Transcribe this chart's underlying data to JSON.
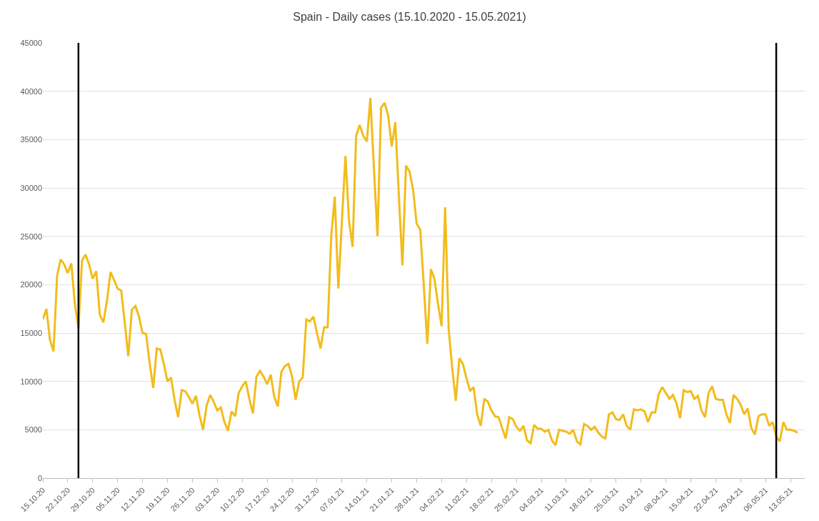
{
  "chart_data": {
    "type": "line",
    "title": "Spain - Daily cases (15.10.2020 - 15.05.2021)",
    "x": [
      "2020-10-15",
      "2020-10-16",
      "2020-10-17",
      "2020-10-18",
      "2020-10-19",
      "2020-10-20",
      "2020-10-21",
      "2020-10-22",
      "2020-10-23",
      "2020-10-24",
      "2020-10-25",
      "2020-10-26",
      "2020-10-27",
      "2020-10-28",
      "2020-10-29",
      "2020-10-30",
      "2020-10-31",
      "2020-11-01",
      "2020-11-02",
      "2020-11-03",
      "2020-11-04",
      "2020-11-05",
      "2020-11-06",
      "2020-11-07",
      "2020-11-08",
      "2020-11-09",
      "2020-11-10",
      "2020-11-11",
      "2020-11-12",
      "2020-11-13",
      "2020-11-14",
      "2020-11-15",
      "2020-11-16",
      "2020-11-17",
      "2020-11-18",
      "2020-11-19",
      "2020-11-20",
      "2020-11-21",
      "2020-11-22",
      "2020-11-23",
      "2020-11-24",
      "2020-11-25",
      "2020-11-26",
      "2020-11-27",
      "2020-11-28",
      "2020-11-29",
      "2020-11-30",
      "2020-12-01",
      "2020-12-02",
      "2020-12-03",
      "2020-12-04",
      "2020-12-05",
      "2020-12-06",
      "2020-12-07",
      "2020-12-08",
      "2020-12-09",
      "2020-12-10",
      "2020-12-11",
      "2020-12-12",
      "2020-12-13",
      "2020-12-14",
      "2020-12-15",
      "2020-12-16",
      "2020-12-17",
      "2020-12-18",
      "2020-12-19",
      "2020-12-20",
      "2020-12-21",
      "2020-12-22",
      "2020-12-23",
      "2020-12-24",
      "2020-12-25",
      "2020-12-26",
      "2020-12-27",
      "2020-12-28",
      "2020-12-29",
      "2020-12-30",
      "2020-12-31",
      "2021-01-01",
      "2021-01-02",
      "2021-01-03",
      "2021-01-04",
      "2021-01-05",
      "2021-01-06",
      "2021-01-07",
      "2021-01-08",
      "2021-01-09",
      "2021-01-10",
      "2021-01-11",
      "2021-01-12",
      "2021-01-13",
      "2021-01-14",
      "2021-01-15",
      "2021-01-16",
      "2021-01-17",
      "2021-01-18",
      "2021-01-19",
      "2021-01-20",
      "2021-01-21",
      "2021-01-22",
      "2021-01-23",
      "2021-01-24",
      "2021-01-25",
      "2021-01-26",
      "2021-01-27",
      "2021-01-28",
      "2021-01-29",
      "2021-01-30",
      "2021-01-31",
      "2021-02-01",
      "2021-02-02",
      "2021-02-03",
      "2021-02-04",
      "2021-02-05",
      "2021-02-06",
      "2021-02-07",
      "2021-02-08",
      "2021-02-09",
      "2021-02-10",
      "2021-02-11",
      "2021-02-12",
      "2021-02-13",
      "2021-02-14",
      "2021-02-15",
      "2021-02-16",
      "2021-02-17",
      "2021-02-18",
      "2021-02-19",
      "2021-02-20",
      "2021-02-21",
      "2021-02-22",
      "2021-02-23",
      "2021-02-24",
      "2021-02-25",
      "2021-02-26",
      "2021-02-27",
      "2021-02-28",
      "2021-03-01",
      "2021-03-02",
      "2021-03-03",
      "2021-03-04",
      "2021-03-05",
      "2021-03-06",
      "2021-03-07",
      "2021-03-08",
      "2021-03-09",
      "2021-03-10",
      "2021-03-11",
      "2021-03-12",
      "2021-03-13",
      "2021-03-14",
      "2021-03-15",
      "2021-03-16",
      "2021-03-17",
      "2021-03-18",
      "2021-03-19",
      "2021-03-20",
      "2021-03-21",
      "2021-03-22",
      "2021-03-23",
      "2021-03-24",
      "2021-03-25",
      "2021-03-26",
      "2021-03-27",
      "2021-03-28",
      "2021-03-29",
      "2021-03-30",
      "2021-03-31",
      "2021-04-01",
      "2021-04-02",
      "2021-04-03",
      "2021-04-04",
      "2021-04-05",
      "2021-04-06",
      "2021-04-07",
      "2021-04-08",
      "2021-04-09",
      "2021-04-10",
      "2021-04-11",
      "2021-04-12",
      "2021-04-13",
      "2021-04-14",
      "2021-04-15",
      "2021-04-16",
      "2021-04-17",
      "2021-04-18",
      "2021-04-19",
      "2021-04-20",
      "2021-04-21",
      "2021-04-22",
      "2021-04-23",
      "2021-04-24",
      "2021-04-25",
      "2021-04-26",
      "2021-04-27",
      "2021-04-28",
      "2021-04-29",
      "2021-04-30",
      "2021-05-01",
      "2021-05-02",
      "2021-05-03",
      "2021-05-04",
      "2021-05-05",
      "2021-05-06",
      "2021-05-07",
      "2021-05-08",
      "2021-05-09",
      "2021-05-10",
      "2021-05-11",
      "2021-05-12",
      "2021-05-13",
      "2021-05-14",
      "2021-05-15"
    ],
    "series": [
      {
        "color": "#f2bc1b",
        "values": [
          16400,
          17500,
          14300,
          13100,
          20900,
          22600,
          22100,
          21200,
          22200,
          18000,
          15500,
          22500,
          23100,
          22100,
          20600,
          21400,
          16900,
          16100,
          18300,
          21300,
          20500,
          19600,
          19400,
          16100,
          12600,
          17400,
          17800,
          16700,
          15000,
          14900,
          11900,
          9300,
          13400,
          13300,
          11800,
          10000,
          10400,
          8100,
          6300,
          9100,
          9000,
          8400,
          7700,
          8500,
          6500,
          5000,
          7500,
          8600,
          7900,
          7000,
          7300,
          5800,
          4900,
          6900,
          6400,
          8800,
          9500,
          10000,
          8200,
          6700,
          10500,
          11100,
          10500,
          9700,
          10700,
          8400,
          7400,
          11000,
          11600,
          11800,
          10500,
          8100,
          10000,
          10400,
          16400,
          16200,
          16700,
          15000,
          13400,
          15600,
          15600,
          25000,
          29100,
          19600,
          26600,
          33300,
          26600,
          23900,
          35400,
          36500,
          35400,
          34800,
          39300,
          32000,
          25000,
          38300,
          38800,
          37500,
          34300,
          36800,
          29200,
          22000,
          32300,
          31700,
          29800,
          26300,
          25700,
          19900,
          13900,
          21600,
          20600,
          18000,
          15700,
          28000,
          15400,
          11300,
          8000,
          12400,
          11800,
          10300,
          9000,
          9400,
          6600,
          5400,
          8200,
          7900,
          7000,
          6400,
          6300,
          5200,
          4100,
          6300,
          6100,
          5300,
          4900,
          5400,
          3900,
          3600,
          5500,
          5100,
          5100,
          4800,
          5000,
          3900,
          3400,
          5000,
          4900,
          4800,
          4600,
          5000,
          3800,
          3500,
          5600,
          5400,
          5000,
          5300,
          4700,
          4300,
          4100,
          6600,
          6800,
          6100,
          6000,
          6600,
          5400,
          5000,
          7100,
          7000,
          7100,
          6900,
          5800,
          6800,
          6800,
          8700,
          9400,
          8800,
          8200,
          8600,
          7700,
          6200,
          9100,
          8900,
          9000,
          8200,
          8500,
          7000,
          6300,
          8800,
          9500,
          8200,
          8100,
          8100,
          6600,
          5700,
          8600,
          8200,
          7600,
          6600,
          7200,
          5200,
          4500,
          6400,
          6600,
          6600,
          5400,
          5800,
          4300,
          3800,
          5800,
          5000,
          5000,
          4900,
          4700
        ]
      }
    ],
    "xlim": [
      "2020-10-15",
      "2021-05-17"
    ],
    "xticks": [
      {
        "value": "2020-10-15",
        "label": "15.10.20"
      },
      {
        "value": "2020-10-22",
        "label": "22.10.20"
      },
      {
        "value": "2020-10-29",
        "label": "29.10.20"
      },
      {
        "value": "2020-11-05",
        "label": "05.11.20"
      },
      {
        "value": "2020-11-12",
        "label": "12.11.20"
      },
      {
        "value": "2020-11-19",
        "label": "19.11.20"
      },
      {
        "value": "2020-11-26",
        "label": "26.11.20"
      },
      {
        "value": "2020-12-03",
        "label": "03.12.20"
      },
      {
        "value": "2020-12-10",
        "label": "10.12.20"
      },
      {
        "value": "2020-12-17",
        "label": "17.12.20"
      },
      {
        "value": "2020-12-24",
        "label": "24.12.20"
      },
      {
        "value": "2020-12-31",
        "label": "31.12.20"
      },
      {
        "value": "2021-01-07",
        "label": "07.01.21"
      },
      {
        "value": "2021-01-14",
        "label": "14.01.21"
      },
      {
        "value": "2021-01-21",
        "label": "21.01.21"
      },
      {
        "value": "2021-01-28",
        "label": "28.01.21"
      },
      {
        "value": "2021-02-04",
        "label": "04.02.21"
      },
      {
        "value": "2021-02-11",
        "label": "11.02.21"
      },
      {
        "value": "2021-02-18",
        "label": "18.02.21"
      },
      {
        "value": "2021-02-25",
        "label": "25.02.21"
      },
      {
        "value": "2021-03-04",
        "label": "04.03.21"
      },
      {
        "value": "2021-03-11",
        "label": "11.03.21"
      },
      {
        "value": "2021-03-18",
        "label": "18.03.21"
      },
      {
        "value": "2021-03-25",
        "label": "25.03.21"
      },
      {
        "value": "2021-04-01",
        "label": "01.04.21"
      },
      {
        "value": "2021-04-08",
        "label": "08.04.21"
      },
      {
        "value": "2021-04-15",
        "label": "15.04.21"
      },
      {
        "value": "2021-04-22",
        "label": "22.04.21"
      },
      {
        "value": "2021-04-29",
        "label": "29.04.21"
      },
      {
        "value": "2021-05-06",
        "label": "06.05.21"
      },
      {
        "value": "2021-05-13",
        "label": "13.05.21"
      }
    ],
    "ylim": [
      0,
      45000
    ],
    "yticks": [
      0,
      5000,
      10000,
      15000,
      20000,
      25000,
      30000,
      35000,
      40000,
      45000
    ],
    "ref_lines": [
      {
        "axis": "x",
        "value": "2020-10-25",
        "color": "#000000"
      },
      {
        "axis": "x",
        "value": "2021-05-09",
        "color": "#000000"
      }
    ],
    "grid": "y",
    "marker": "none",
    "line_style": "solid"
  }
}
